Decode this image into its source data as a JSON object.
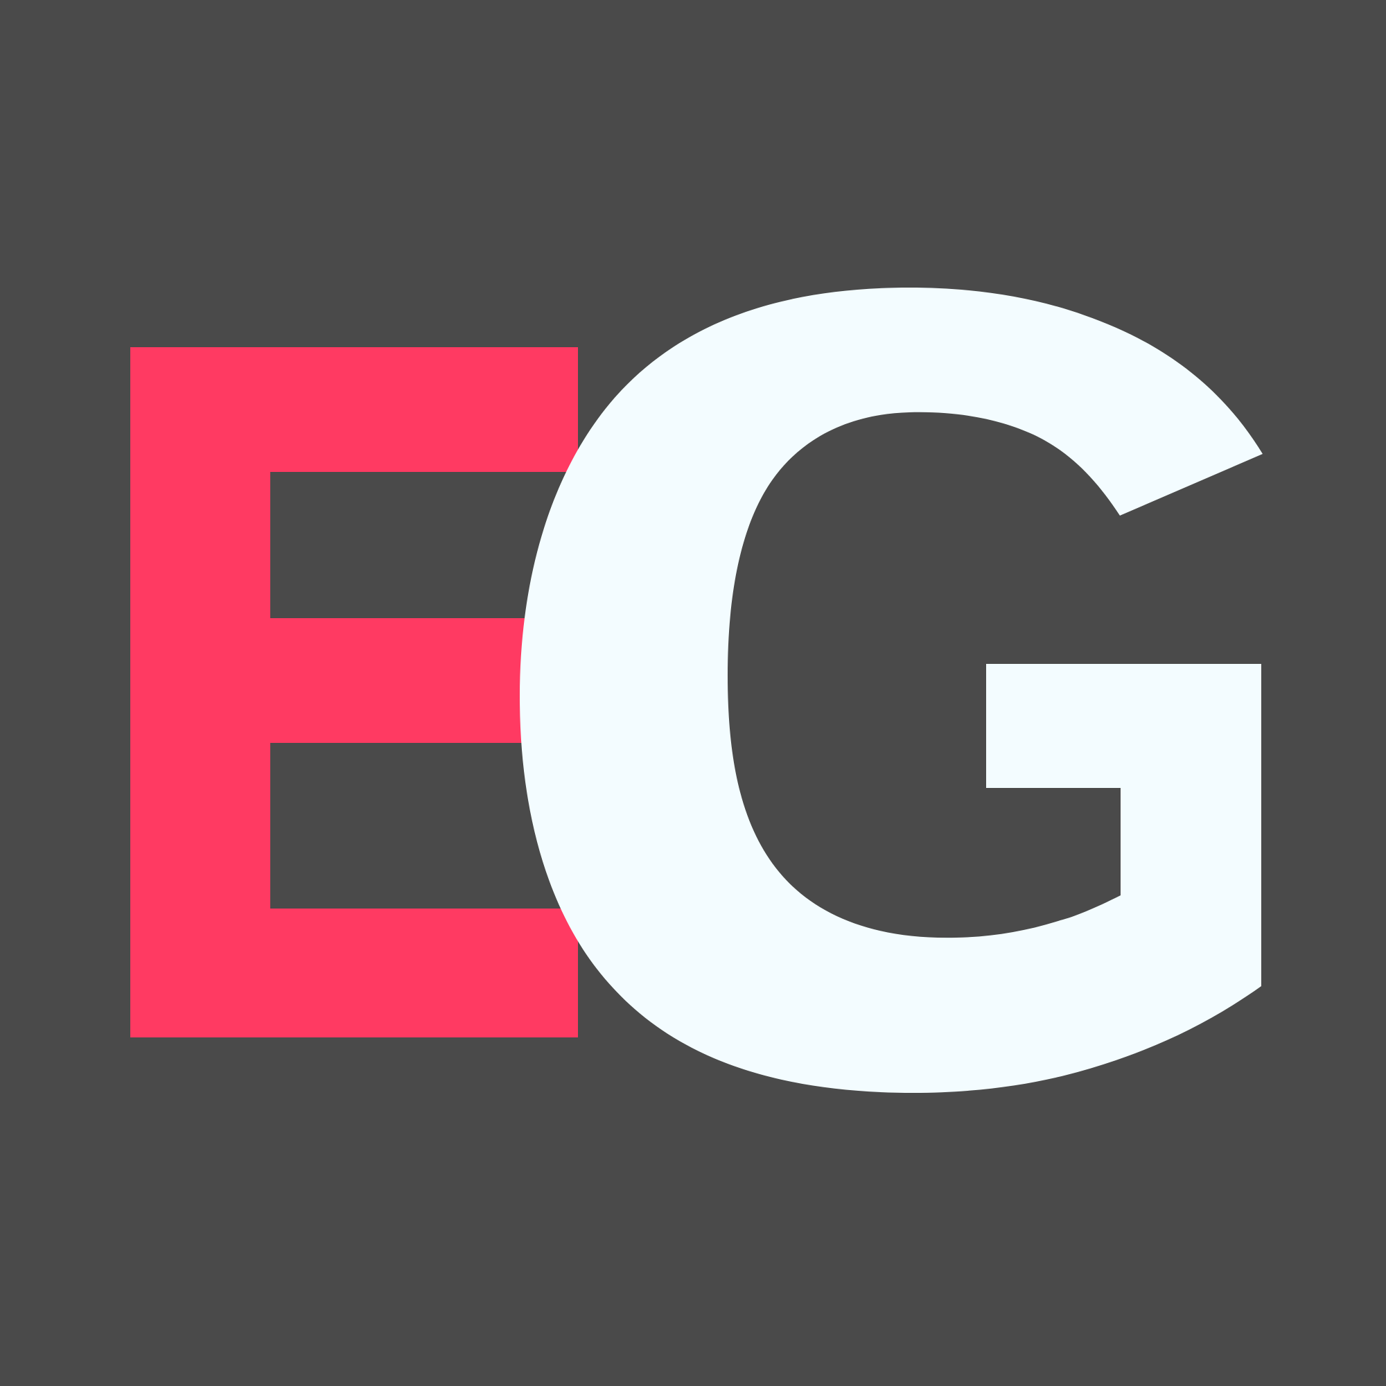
{
  "logo": {
    "text": "EG",
    "letters": [
      {
        "char": "E",
        "color": "#ff3a62"
      },
      {
        "char": "G",
        "color": "#f3fcff"
      }
    ]
  },
  "colors": {
    "background": "#4a4a4a",
    "accent": "#ff3a62",
    "foreground": "#f3fcff"
  }
}
